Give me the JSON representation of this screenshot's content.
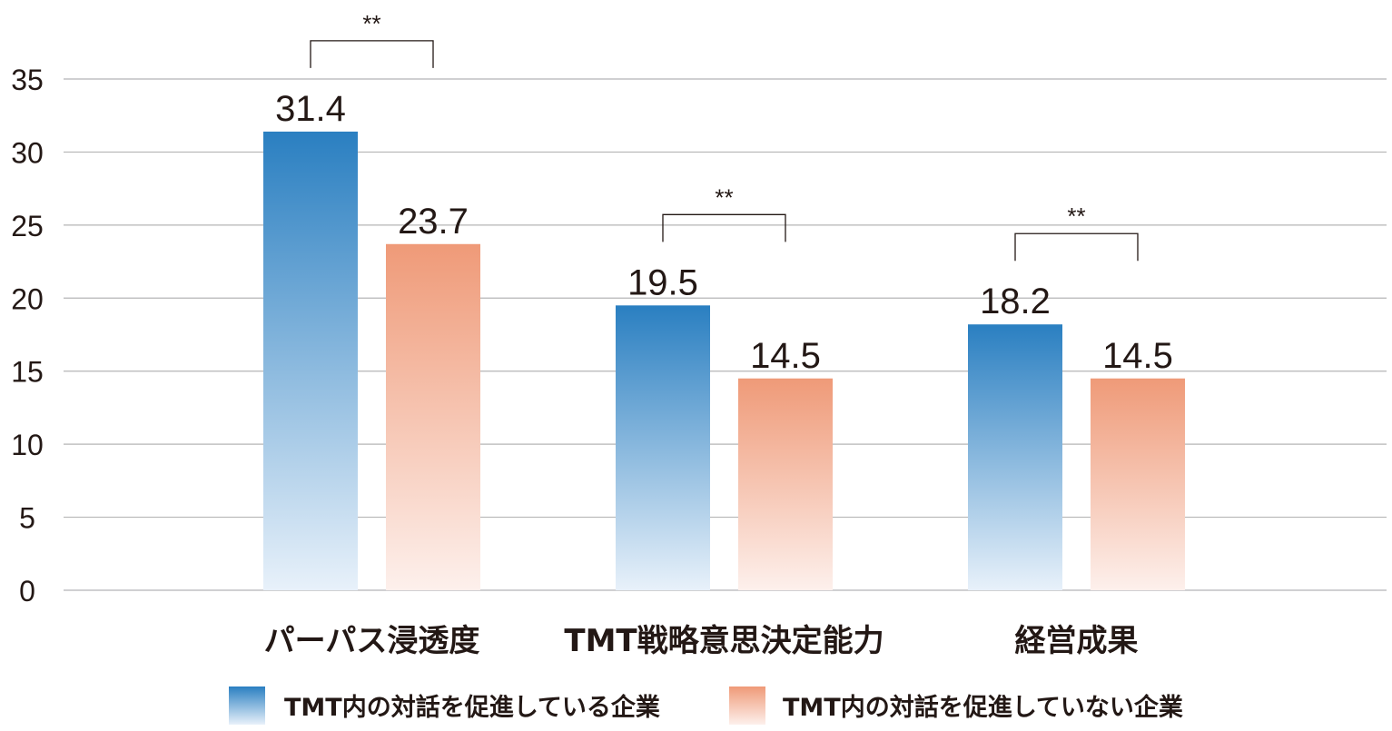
{
  "chart_data": {
    "type": "bar",
    "categories": [
      "パーパス浸透度",
      "TMT戦略意思決定能力",
      "経営成果"
    ],
    "series": [
      {
        "name": "TMT内の対話を促進している企業",
        "values": [
          31.4,
          19.5,
          18.2
        ],
        "color": "#2a7fc1"
      },
      {
        "name": "TMT内の対話を促進していない企業",
        "values": [
          23.7,
          14.5,
          14.5
        ],
        "color": "#ef9a78"
      }
    ],
    "data_labels": [
      [
        "31.4",
        "19.5",
        "18.2"
      ],
      [
        "23.7",
        "14.5",
        "14.5"
      ]
    ],
    "significance": [
      "**",
      "**",
      "**"
    ],
    "ylim": [
      0,
      35
    ],
    "yticks": [
      "0",
      "5",
      "10",
      "15",
      "20",
      "25",
      "30",
      "35"
    ],
    "title": "",
    "xlabel": "",
    "ylabel": "",
    "grid": true,
    "legend_position": "bottom"
  }
}
